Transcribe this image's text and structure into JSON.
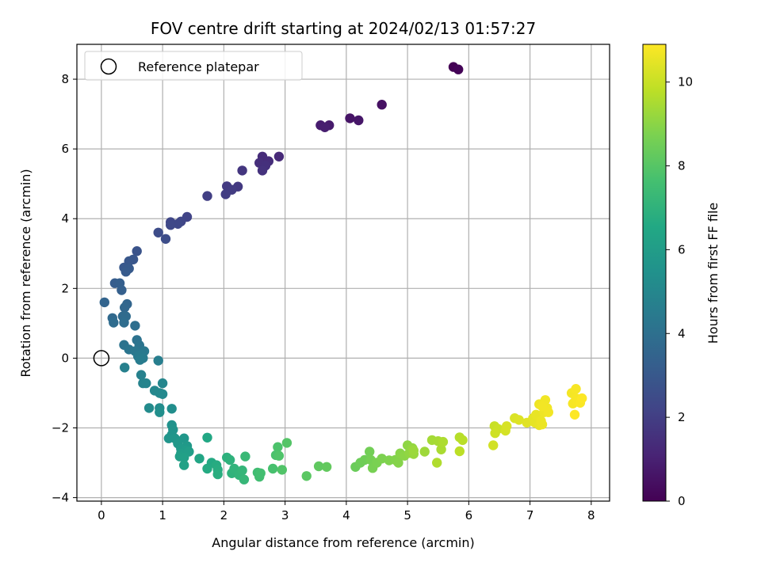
{
  "chart_data": {
    "type": "scatter",
    "title": "FOV centre drift starting at 2024/02/13 01:57:27",
    "xlabel": "Angular distance from reference (arcmin)",
    "ylabel": "Rotation from reference (arcmin)",
    "xlim": [
      -0.4,
      8.3
    ],
    "ylim": [
      -4.1,
      9.0
    ],
    "xticks": [
      0,
      1,
      2,
      3,
      4,
      5,
      6,
      7,
      8
    ],
    "yticks": [
      -4,
      -2,
      0,
      2,
      4,
      6,
      8
    ],
    "grid": true,
    "legend": {
      "placement": "top-left",
      "entries": [
        "Reference platepar"
      ]
    },
    "reference_point": {
      "x": 0,
      "y": 0
    },
    "colorbar": {
      "label": "Hours from first FF file",
      "min": 0,
      "max": 10.9,
      "ticks": [
        0,
        2,
        4,
        6,
        8,
        10
      ],
      "colormap": "viridis"
    },
    "series": [
      {
        "columns": [
          "x",
          "y",
          "hours"
        ],
        "points": [
          [
            5.75,
            8.35,
            0.0
          ],
          [
            5.83,
            8.28,
            0.1
          ],
          [
            4.58,
            7.27,
            0.5
          ],
          [
            4.06,
            6.88,
            0.6
          ],
          [
            4.2,
            6.82,
            0.65
          ],
          [
            3.72,
            6.68,
            0.8
          ],
          [
            3.58,
            6.68,
            0.85
          ],
          [
            3.65,
            6.62,
            0.9
          ],
          [
            2.9,
            5.78,
            1.3
          ],
          [
            2.63,
            5.78,
            1.35
          ],
          [
            2.73,
            5.65,
            1.4
          ],
          [
            2.58,
            5.6,
            1.45
          ],
          [
            2.68,
            5.52,
            1.5
          ],
          [
            2.63,
            5.38,
            1.55
          ],
          [
            2.3,
            5.38,
            1.7
          ],
          [
            2.23,
            4.92,
            1.8
          ],
          [
            2.05,
            4.93,
            1.85
          ],
          [
            2.13,
            4.83,
            1.9
          ],
          [
            2.03,
            4.7,
            1.95
          ],
          [
            1.73,
            4.65,
            2.0
          ],
          [
            1.4,
            4.05,
            2.2
          ],
          [
            1.3,
            3.92,
            2.25
          ],
          [
            1.13,
            3.9,
            2.3
          ],
          [
            1.25,
            3.85,
            2.35
          ],
          [
            1.13,
            3.82,
            2.4
          ],
          [
            0.93,
            3.6,
            2.5
          ],
          [
            1.05,
            3.42,
            2.55
          ],
          [
            0.58,
            3.07,
            2.8
          ],
          [
            0.52,
            2.83,
            2.9
          ],
          [
            0.45,
            2.78,
            2.95
          ],
          [
            0.37,
            2.6,
            3.0
          ],
          [
            0.45,
            2.57,
            3.05
          ],
          [
            0.4,
            2.48,
            3.1
          ],
          [
            0.22,
            2.15,
            3.2
          ],
          [
            0.3,
            2.15,
            3.25
          ],
          [
            0.33,
            1.95,
            3.3
          ],
          [
            0.05,
            1.6,
            3.5
          ],
          [
            0.42,
            1.55,
            3.55
          ],
          [
            0.38,
            1.45,
            3.6
          ],
          [
            0.18,
            1.15,
            3.7
          ],
          [
            0.35,
            1.2,
            3.75
          ],
          [
            0.4,
            1.2,
            3.8
          ],
          [
            0.2,
            1.02,
            3.85
          ],
          [
            0.37,
            1.02,
            3.9
          ],
          [
            0.55,
            0.93,
            3.95
          ],
          [
            0.58,
            0.52,
            4.1
          ],
          [
            0.37,
            0.38,
            4.15
          ],
          [
            0.62,
            0.37,
            4.2
          ],
          [
            0.45,
            0.25,
            4.25
          ],
          [
            0.55,
            0.2,
            4.3
          ],
          [
            0.7,
            0.2,
            4.35
          ],
          [
            0.65,
            0.1,
            4.4
          ],
          [
            0.6,
            0.05,
            4.45
          ],
          [
            0.68,
            0.0,
            4.5
          ],
          [
            0.63,
            -0.05,
            4.55
          ],
          [
            0.93,
            -0.07,
            4.6
          ],
          [
            0.38,
            -0.27,
            4.7
          ],
          [
            0.65,
            -0.48,
            4.75
          ],
          [
            0.68,
            -0.72,
            4.85
          ],
          [
            0.73,
            -0.72,
            4.9
          ],
          [
            1.0,
            -0.72,
            4.95
          ],
          [
            0.87,
            -0.93,
            5.0
          ],
          [
            0.95,
            -1.0,
            5.05
          ],
          [
            1.0,
            -1.03,
            5.1
          ],
          [
            0.78,
            -1.43,
            5.2
          ],
          [
            0.95,
            -1.43,
            5.25
          ],
          [
            1.15,
            -1.45,
            5.3
          ],
          [
            0.95,
            -1.55,
            5.35
          ],
          [
            1.15,
            -1.92,
            5.5
          ],
          [
            1.17,
            -2.05,
            5.55
          ],
          [
            1.15,
            -2.2,
            5.6
          ],
          [
            1.1,
            -2.3,
            5.65
          ],
          [
            1.2,
            -2.3,
            5.7
          ],
          [
            1.35,
            -2.3,
            5.75
          ],
          [
            1.25,
            -2.45,
            5.8
          ],
          [
            1.4,
            -2.52,
            5.85
          ],
          [
            1.3,
            -2.6,
            5.9
          ],
          [
            1.38,
            -2.65,
            5.95
          ],
          [
            1.3,
            -2.73,
            6.0
          ],
          [
            1.43,
            -2.68,
            6.05
          ],
          [
            1.28,
            -2.82,
            6.1
          ],
          [
            1.35,
            -2.85,
            6.15
          ],
          [
            1.35,
            -3.07,
            6.2
          ],
          [
            1.6,
            -2.88,
            6.4
          ],
          [
            1.73,
            -2.28,
            6.5
          ],
          [
            1.8,
            -3.0,
            6.6
          ],
          [
            1.73,
            -3.17,
            6.65
          ],
          [
            1.88,
            -3.07,
            6.7
          ],
          [
            1.9,
            -3.2,
            6.75
          ],
          [
            1.9,
            -3.33,
            6.8
          ],
          [
            2.05,
            -2.85,
            6.9
          ],
          [
            2.1,
            -2.92,
            6.95
          ],
          [
            2.13,
            -3.3,
            7.0
          ],
          [
            2.17,
            -3.17,
            7.05
          ],
          [
            2.25,
            -3.35,
            7.1
          ],
          [
            2.3,
            -3.22,
            7.15
          ],
          [
            2.33,
            -3.48,
            7.2
          ],
          [
            2.35,
            -2.82,
            7.3
          ],
          [
            2.55,
            -3.28,
            7.5
          ],
          [
            2.58,
            -3.4,
            7.55
          ],
          [
            2.6,
            -3.3,
            7.6
          ],
          [
            2.8,
            -3.17,
            7.7
          ],
          [
            2.85,
            -2.78,
            7.75
          ],
          [
            2.88,
            -2.55,
            7.8
          ],
          [
            2.9,
            -2.8,
            7.85
          ],
          [
            2.95,
            -3.2,
            7.9
          ],
          [
            3.03,
            -2.43,
            7.95
          ],
          [
            3.35,
            -3.38,
            8.1
          ],
          [
            3.55,
            -3.1,
            8.2
          ],
          [
            3.68,
            -3.12,
            8.25
          ],
          [
            4.15,
            -3.12,
            8.4
          ],
          [
            4.23,
            -3.0,
            8.45
          ],
          [
            4.3,
            -2.92,
            8.5
          ],
          [
            4.38,
            -2.68,
            8.55
          ],
          [
            4.4,
            -2.92,
            8.6
          ],
          [
            4.43,
            -3.15,
            8.65
          ],
          [
            4.5,
            -3.0,
            8.7
          ],
          [
            4.58,
            -2.88,
            8.75
          ],
          [
            4.7,
            -2.93,
            8.8
          ],
          [
            4.8,
            -2.92,
            8.85
          ],
          [
            4.85,
            -3.0,
            8.9
          ],
          [
            4.88,
            -2.73,
            8.95
          ],
          [
            4.95,
            -2.8,
            9.0
          ],
          [
            5.0,
            -2.5,
            9.05
          ],
          [
            5.03,
            -2.72,
            9.1
          ],
          [
            5.08,
            -2.58,
            9.15
          ],
          [
            5.1,
            -2.75,
            9.2
          ],
          [
            5.1,
            -2.65,
            9.25
          ],
          [
            5.28,
            -2.68,
            9.3
          ],
          [
            5.4,
            -2.35,
            9.4
          ],
          [
            5.5,
            -2.38,
            9.45
          ],
          [
            5.55,
            -2.62,
            9.5
          ],
          [
            5.58,
            -2.4,
            9.55
          ],
          [
            5.48,
            -3.0,
            9.6
          ],
          [
            5.85,
            -2.27,
            9.7
          ],
          [
            5.9,
            -2.35,
            9.75
          ],
          [
            5.85,
            -2.67,
            9.8
          ],
          [
            6.42,
            -1.95,
            10.0
          ],
          [
            6.48,
            -2.03,
            10.05
          ],
          [
            6.43,
            -2.15,
            10.1
          ],
          [
            6.4,
            -2.5,
            10.15
          ],
          [
            6.6,
            -2.08,
            10.2
          ],
          [
            6.62,
            -1.95,
            10.25
          ],
          [
            6.75,
            -1.72,
            10.3
          ],
          [
            6.82,
            -1.77,
            10.35
          ],
          [
            6.95,
            -1.85,
            10.4
          ],
          [
            7.05,
            -1.72,
            10.45
          ],
          [
            7.08,
            -1.85,
            10.5
          ],
          [
            7.1,
            -1.62,
            10.55
          ],
          [
            7.15,
            -1.92,
            10.55
          ],
          [
            7.18,
            -1.8,
            10.6
          ],
          [
            7.2,
            -1.9,
            10.6
          ],
          [
            7.15,
            -1.32,
            10.65
          ],
          [
            7.23,
            -1.55,
            10.65
          ],
          [
            7.25,
            -1.2,
            10.7
          ],
          [
            7.28,
            -1.43,
            10.7
          ],
          [
            7.3,
            -1.55,
            10.72
          ],
          [
            7.2,
            -1.38,
            10.72
          ],
          [
            7.68,
            -1.0,
            10.75
          ],
          [
            7.7,
            -1.3,
            10.78
          ],
          [
            7.75,
            -1.15,
            10.8
          ],
          [
            7.75,
            -0.88,
            10.8
          ],
          [
            7.78,
            -1.25,
            10.82
          ],
          [
            7.82,
            -1.28,
            10.85
          ],
          [
            7.85,
            -1.15,
            10.88
          ],
          [
            7.73,
            -1.62,
            10.9
          ]
        ]
      }
    ]
  }
}
